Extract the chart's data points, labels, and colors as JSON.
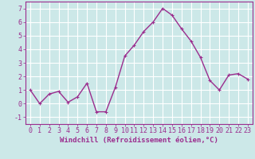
{
  "x": [
    0,
    1,
    2,
    3,
    4,
    5,
    6,
    7,
    8,
    9,
    10,
    11,
    12,
    13,
    14,
    15,
    16,
    17,
    18,
    19,
    20,
    21,
    22,
    23
  ],
  "y": [
    1.0,
    0.0,
    0.7,
    0.9,
    0.1,
    0.5,
    1.5,
    -0.6,
    -0.6,
    1.2,
    3.5,
    4.3,
    5.3,
    6.0,
    7.0,
    6.5,
    5.5,
    4.6,
    3.4,
    1.7,
    1.0,
    2.1,
    2.2,
    1.8
  ],
  "line_color": "#9b2d8e",
  "marker": "+",
  "marker_size": 3,
  "bg_color": "#cce8e8",
  "grid_color": "#ffffff",
  "xlim": [
    -0.5,
    23.5
  ],
  "ylim": [
    -1.5,
    7.5
  ],
  "yticks": [
    -1,
    0,
    1,
    2,
    3,
    4,
    5,
    6,
    7
  ],
  "xticks": [
    0,
    1,
    2,
    3,
    4,
    5,
    6,
    7,
    8,
    9,
    10,
    11,
    12,
    13,
    14,
    15,
    16,
    17,
    18,
    19,
    20,
    21,
    22,
    23
  ],
  "tick_color": "#9b2d8e",
  "label_color": "#9b2d8e",
  "spine_color": "#9b2d8e",
  "xlabel": "Windchill (Refroidissement éolien,°C)",
  "xlabel_fontsize": 6.5,
  "tick_fontsize": 6.0,
  "linewidth": 1.0
}
